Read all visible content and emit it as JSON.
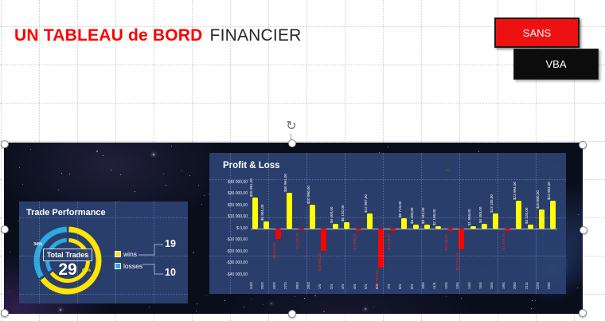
{
  "slide": {
    "title_red": "UN TABLEAU de BORD",
    "title_black": "FINANCIER"
  },
  "buttons": {
    "sans": "SANS",
    "vba": "VBA"
  },
  "chart_data": [
    {
      "type": "pie",
      "subtype": "double-ring-donut",
      "title": "Trade Performance",
      "center_label": "Total Trades",
      "center_value": 29,
      "legend_position": "right",
      "slices": [
        {
          "label": "wins",
          "value": 19,
          "pct": "66%",
          "color": "#ffe600"
        },
        {
          "label": "losses",
          "value": 10,
          "pct": "34%",
          "color": "#2da9e1"
        }
      ]
    },
    {
      "type": "bar",
      "title": "Profit & Loss",
      "xlabel": "",
      "ylabel": "",
      "ylim": [
        -40000,
        40000
      ],
      "grid": true,
      "ytick_labels": [
        "$40 000,00",
        "$30 000,00",
        "$20 000,00",
        "$10 000,00",
        "$ 0,00",
        "-$10 000,00",
        "-$20 000,00",
        "-$30 000,00",
        "-$40 000,00"
      ],
      "categories": [
        "24/3",
        "25/3",
        "26/3",
        "27/3",
        "28/3",
        "29/3",
        "1/4",
        "2/4",
        "3/4",
        "4/4",
        "5/4",
        "6/4",
        "7/4",
        "8/4",
        "9/4",
        "10/4",
        "11/4",
        "12/4",
        "13/4",
        "14/4",
        "15/4",
        "16/4",
        "19/4",
        "20/4",
        "21/4",
        "22/4",
        "23/4"
      ],
      "values": [
        26991,
        5991,
        -8993,
        30991,
        -1100,
        20990,
        -18993,
        4400,
        5192,
        -1998,
        12987,
        -33994,
        -1934,
        8713,
        3400,
        3182,
        2196,
        -2194,
        -17911,
        1958,
        4453,
        13183,
        -1983,
        23994,
        3320,
        16600,
        23984
      ],
      "value_labels": [
        "$26 991,00",
        "$5 991,00",
        "-$8 993,00",
        "$30 991,00",
        "-$1 100,00",
        "$20 990,00",
        "-$18 993,00",
        "$4 400,00",
        "$5 192,00",
        "-$1 998,00",
        "$12 987,00",
        "-$33 994,00",
        "-$1 934,00",
        "$8 713,00",
        "$3 400,00",
        "$3 182,00",
        "$2 196,00",
        "-$2 194,00",
        "-$17 911,00",
        "$1 958,00",
        "$4 453,00",
        "$13 183,00",
        "-$1 983,00",
        "$23 994,00",
        "$3 320,00",
        "$16 600,00",
        "$23 984,00"
      ],
      "positive_color": "#ffff00",
      "negative_color": "#ff0000"
    }
  ],
  "colors": {
    "accent_red": "#ee1111",
    "button_black": "#0c0c0c",
    "panel_blue": "#2a406e",
    "wins_yellow": "#ffe600",
    "losses_blue": "#2da9e1",
    "bar_positive": "#ffff00",
    "bar_negative": "#ff0000"
  }
}
